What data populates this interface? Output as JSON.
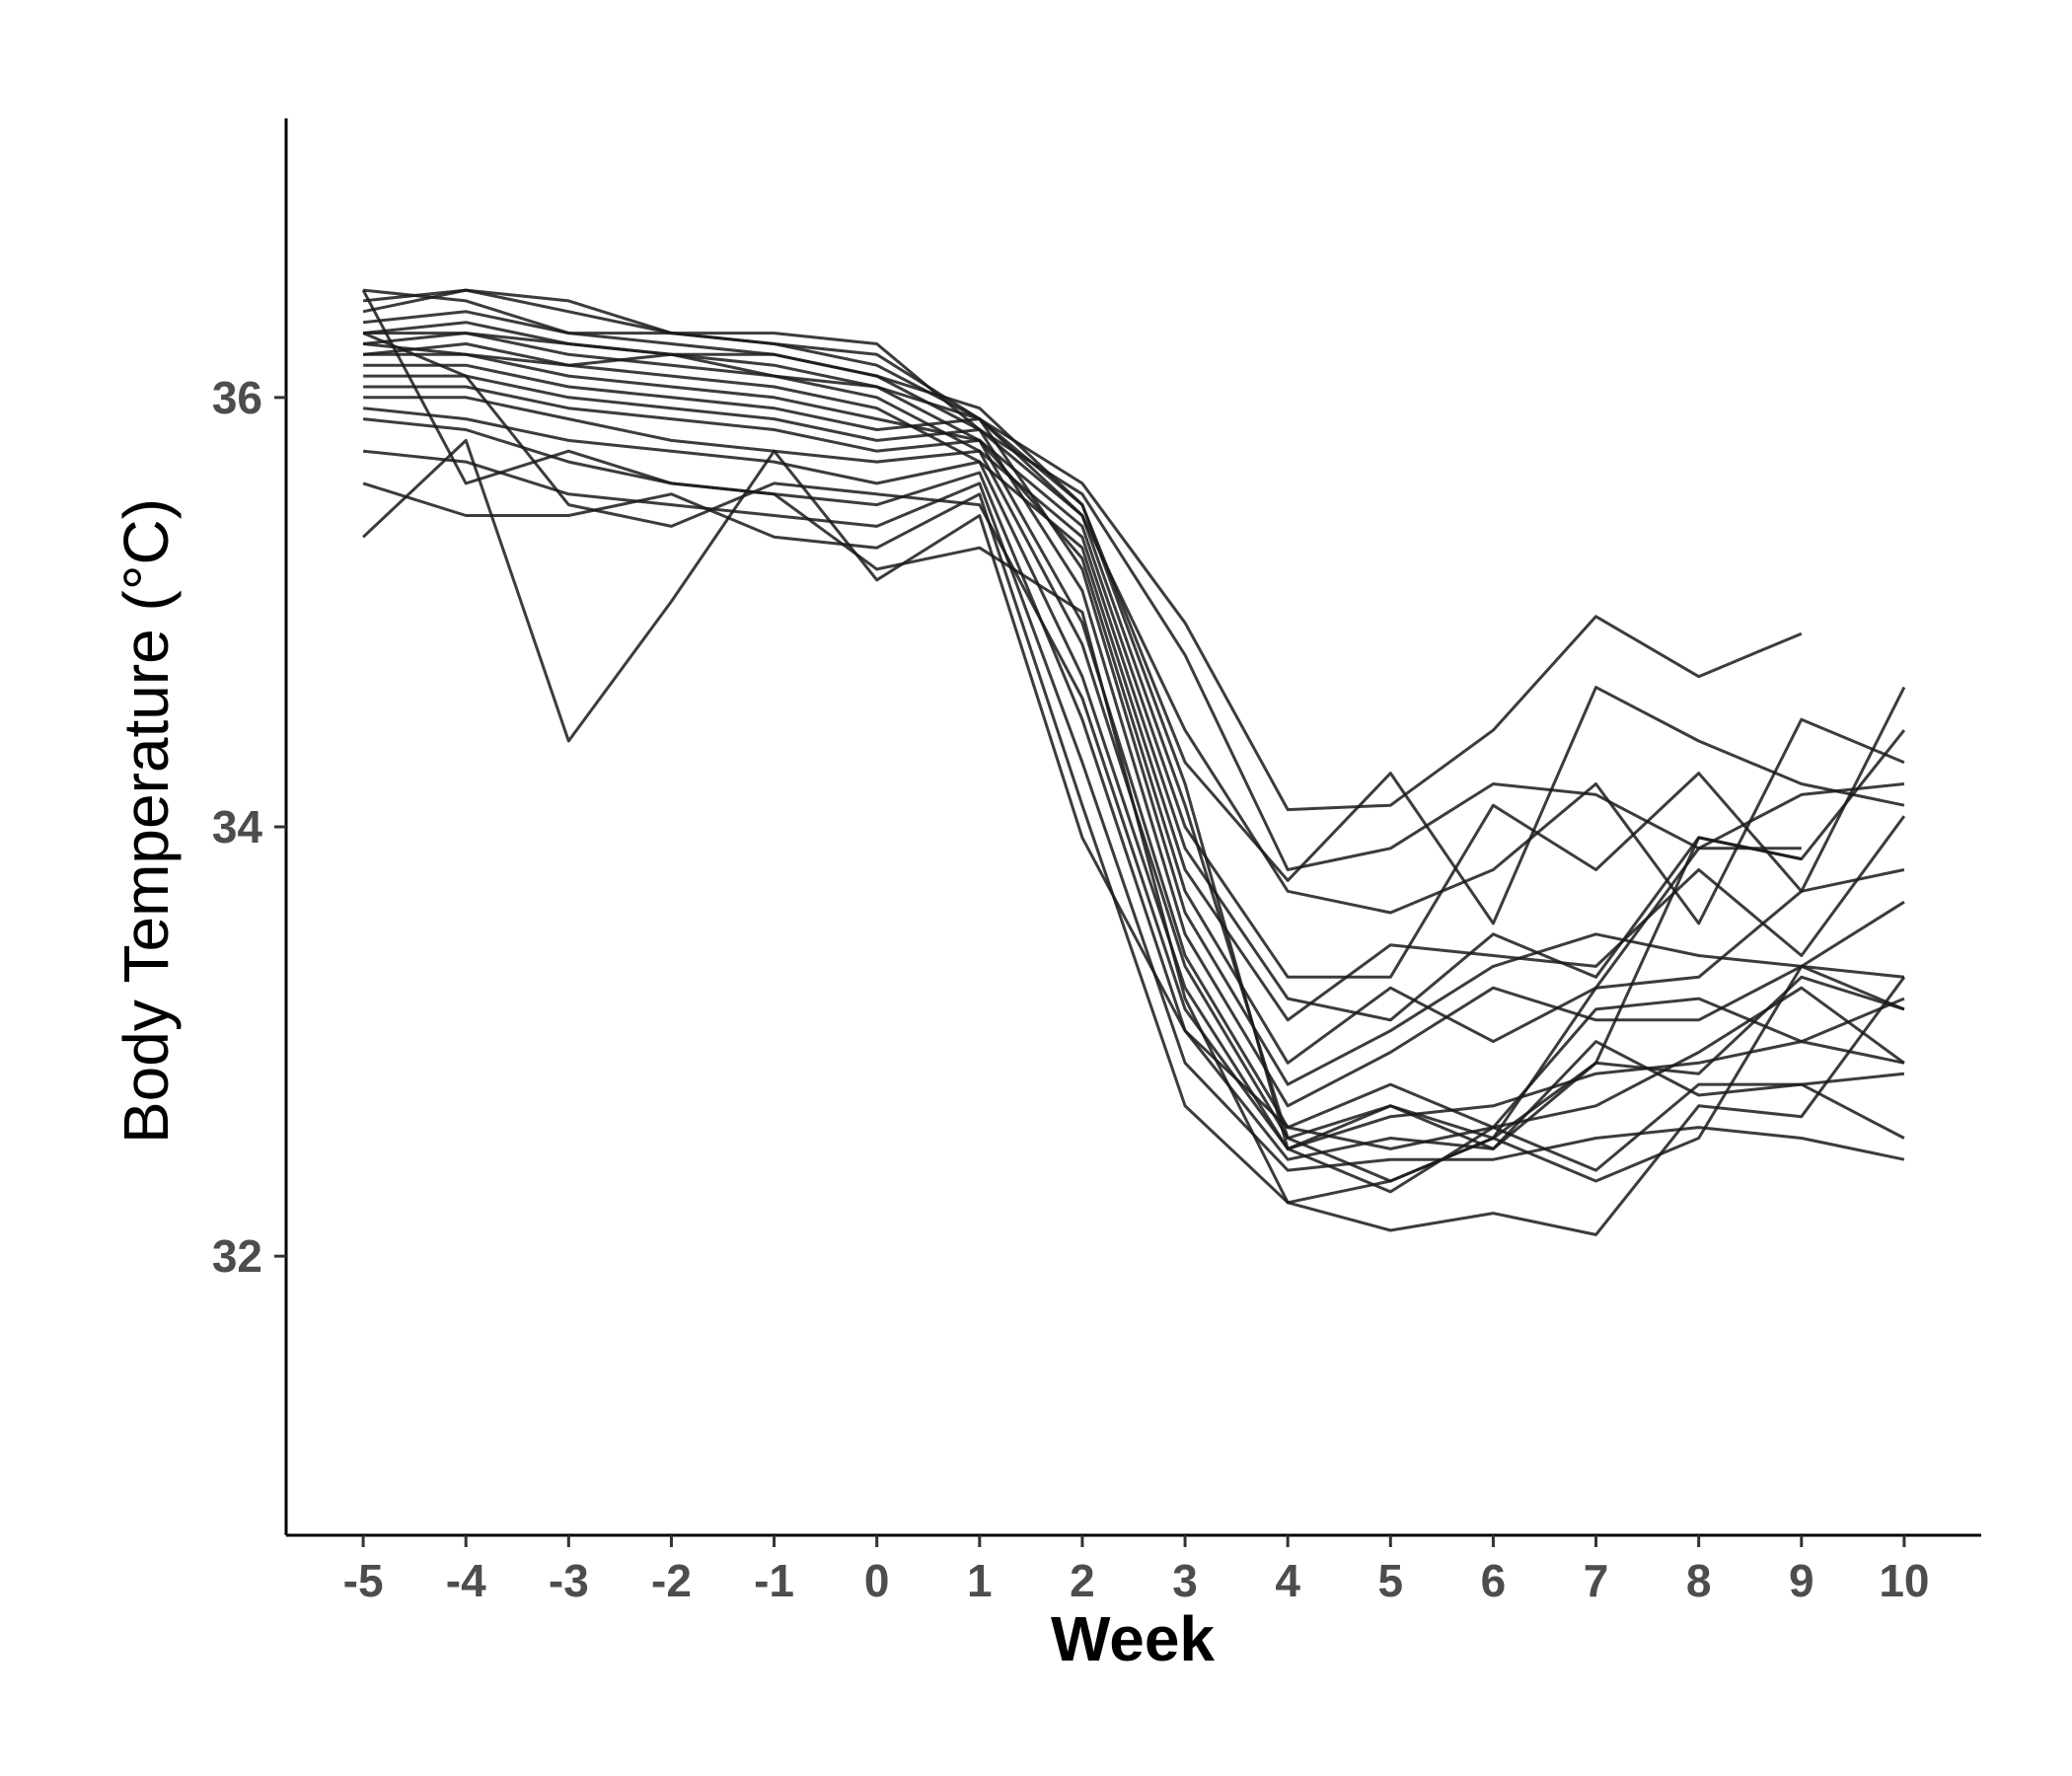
{
  "chart_data": {
    "type": "line",
    "title": "",
    "xlabel": "Week",
    "ylabel": "Body Temperature (°C)",
    "x": [
      -5,
      -4,
      -3,
      -2,
      -1,
      0,
      1,
      2,
      3,
      4,
      5,
      6,
      7,
      8,
      9,
      10
    ],
    "x_tick_labels": [
      "-5",
      "-4",
      "-3",
      "-2",
      "-1",
      "0",
      "1",
      "2",
      "3",
      "4",
      "5",
      "6",
      "7",
      "8",
      "9",
      "10"
    ],
    "y_ticks": [
      32,
      34,
      36
    ],
    "y_tick_labels": [
      "32",
      "34",
      "36"
    ],
    "xlim": [
      -5.75,
      10.75
    ],
    "ylim": [
      30.7,
      37.3
    ],
    "grid": false,
    "legend": "none",
    "line_color": "#1a1a1a",
    "series": [
      {
        "values": [
          36.5,
          36.45,
          36.3,
          36.3,
          36.25,
          36.2,
          35.9,
          35.6,
          34.95,
          34.08,
          34.1,
          34.45,
          34.98,
          34.7,
          34.9,
          null
        ]
      },
      {
        "values": [
          36.45,
          36.5,
          36.45,
          36.3,
          36.3,
          36.25,
          35.85,
          35.55,
          34.8,
          33.8,
          33.9,
          34.2,
          34.15,
          33.9,
          34.15,
          34.2
        ]
      },
      {
        "values": [
          36.4,
          36.5,
          36.4,
          36.3,
          36.25,
          36.15,
          35.9,
          35.5,
          34.3,
          33.75,
          34.25,
          33.55,
          34.65,
          34.4,
          34.2,
          34.1
        ]
      },
      {
        "values": [
          36.35,
          36.4,
          36.3,
          36.25,
          36.2,
          36.1,
          35.85,
          35.45,
          34.45,
          33.7,
          33.6,
          33.8,
          34.2,
          33.55,
          34.5,
          34.3
        ]
      },
      {
        "values": [
          36.3,
          36.35,
          36.25,
          36.2,
          36.15,
          36.05,
          35.8,
          35.4,
          34.0,
          33.3,
          33.3,
          34.1,
          33.8,
          34.25,
          33.7,
          34.65
        ]
      },
      {
        "values": [
          36.25,
          36.3,
          36.2,
          36.15,
          36.1,
          36.0,
          35.75,
          35.35,
          33.9,
          33.2,
          33.1,
          33.5,
          33.3,
          33.95,
          33.85,
          34.45
        ]
      },
      {
        "values": [
          36.2,
          36.25,
          36.15,
          36.1,
          36.05,
          35.95,
          35.7,
          35.3,
          33.8,
          33.1,
          33.45,
          33.4,
          33.35,
          33.8,
          33.4,
          34.05
        ]
      },
      {
        "values": [
          36.2,
          36.2,
          36.1,
          36.05,
          36.0,
          35.9,
          35.8,
          35.25,
          33.7,
          32.9,
          33.25,
          33.0,
          33.25,
          33.3,
          33.7,
          33.8
        ]
      },
      {
        "values": [
          36.15,
          36.15,
          36.05,
          36.0,
          35.95,
          35.85,
          35.9,
          35.2,
          33.6,
          32.8,
          33.05,
          33.35,
          33.5,
          33.4,
          33.35,
          33.65
        ]
      },
      {
        "values": [
          36.1,
          36.1,
          36.0,
          35.95,
          35.9,
          35.8,
          35.85,
          35.1,
          33.5,
          32.7,
          32.95,
          33.25,
          33.1,
          33.1,
          33.35,
          33.3
        ]
      },
      {
        "values": [
          36.05,
          36.05,
          35.95,
          35.9,
          35.85,
          35.75,
          35.8,
          34.95,
          33.4,
          32.6,
          32.8,
          32.6,
          33.15,
          33.2,
          33.0,
          33.2
        ]
      },
      {
        "values": [
          36.0,
          36.0,
          35.9,
          35.8,
          35.75,
          35.7,
          35.75,
          34.85,
          33.35,
          32.55,
          32.7,
          32.55,
          32.9,
          32.85,
          33.3,
          33.15
        ]
      },
      {
        "values": [
          35.95,
          35.9,
          35.8,
          35.75,
          35.7,
          35.6,
          35.7,
          34.7,
          33.25,
          32.5,
          32.65,
          32.7,
          32.85,
          32.9,
          33.0,
          32.9
        ]
      },
      {
        "values": [
          35.9,
          35.85,
          35.7,
          35.6,
          35.55,
          35.5,
          35.65,
          34.5,
          33.05,
          32.45,
          32.55,
          32.5,
          33.0,
          32.75,
          32.8,
          32.55
        ]
      },
      {
        "values": [
          35.75,
          35.7,
          35.55,
          35.5,
          35.45,
          35.4,
          35.6,
          34.3,
          32.9,
          32.4,
          32.45,
          32.45,
          32.55,
          32.6,
          32.55,
          32.45
        ]
      },
      {
        "values": [
          35.6,
          35.45,
          35.45,
          35.55,
          35.35,
          35.3,
          35.55,
          34.1,
          32.7,
          32.25,
          32.35,
          32.55,
          32.35,
          32.55,
          33.35,
          33.15
        ]
      },
      {
        "values": [
          35.35,
          35.8,
          34.4,
          35.05,
          35.75,
          35.15,
          35.45,
          33.95,
          33.05,
          32.6,
          32.5,
          32.6,
          32.4,
          32.8,
          32.8,
          32.85
        ]
      },
      {
        "values": [
          36.5,
          35.6,
          35.75,
          35.6,
          35.55,
          35.2,
          35.3,
          35.0,
          33.2,
          32.25,
          32.12,
          32.2,
          32.1,
          32.7,
          32.65,
          33.3
        ]
      },
      {
        "values": [
          36.3,
          36.1,
          35.5,
          35.4,
          35.6,
          35.55,
          35.5,
          34.6,
          33.15,
          32.5,
          32.3,
          32.6,
          32.7,
          32.95,
          33.25,
          32.9
        ]
      },
      {
        "values": [
          36.25,
          36.2,
          36.15,
          36.2,
          36.1,
          36.05,
          35.9,
          35.45,
          34.1,
          32.55,
          32.35,
          32.55,
          33.25,
          33.9,
          33.9,
          null
        ]
      },
      {
        "values": [
          36.3,
          36.3,
          36.25,
          36.2,
          36.2,
          36.1,
          35.95,
          35.5,
          34.2,
          32.5,
          32.7,
          32.5,
          32.9,
          33.95,
          33.85,
          null
        ]
      }
    ]
  }
}
